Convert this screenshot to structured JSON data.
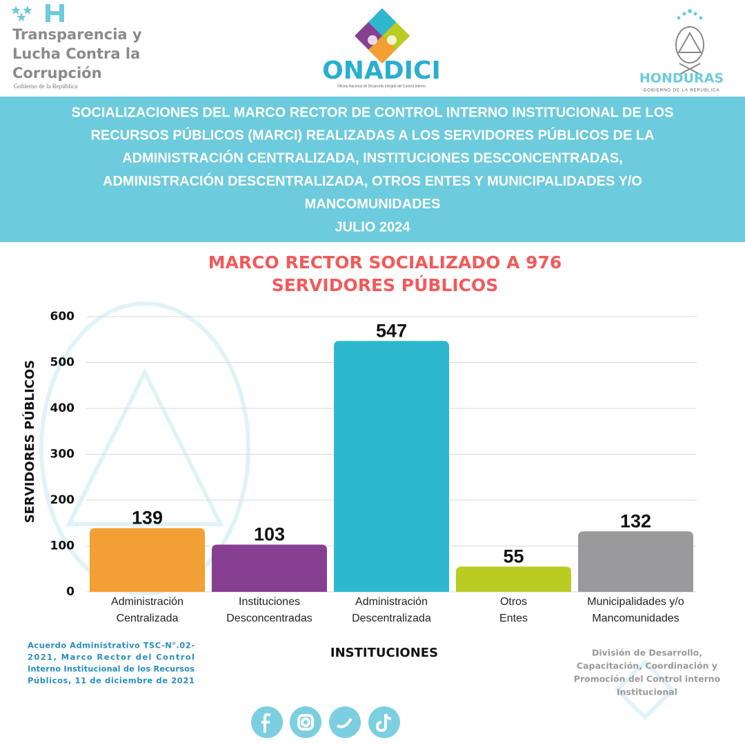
{
  "header": {
    "left_logo": [
      "Transparencia y",
      "Lucha Contra la",
      "Corrupción"
    ],
    "left_sub": "Gobierno de la República",
    "center_logo": "ONADICI",
    "center_sub": "Oficina Nacional de Desarrollo Integral del Control Interno",
    "right_logo": "HONDURAS",
    "right_sub": "GOBIERNO DE LA REPÚBLICA"
  },
  "banner": {
    "lines": [
      "SOCIALIZACIONES DEL MARCO RECTOR DE CONTROL INTERNO INSTITUCIONAL DE LOS",
      "RECURSOS PÚBLICOS (MARCI) REALIZADAS A LOS SERVIDORES PÚBLICOS DE LA",
      "ADMINISTRACIÓN CENTRALIZADA,  INSTITUCIONES DESCONCENTRADAS,",
      "ADMINISTRACIÓN DESCENTRALIZADA, OTROS ENTES Y MUNICIPALIDADES Y/O",
      "MANCOMUNIDADES",
      "JULIO 2024"
    ]
  },
  "chart_data": {
    "type": "bar",
    "title": [
      "MARCO RECTOR SOCIALIZADO A 976",
      "SERVIDORES PÚBLICOS"
    ],
    "categories": [
      [
        "Administración",
        "Centralizada"
      ],
      [
        "Instituciones",
        "Desconcentradas"
      ],
      [
        "Administración",
        "Descentralizada"
      ],
      [
        "Otros",
        "Entes"
      ],
      [
        "Municipalidades y/o",
        "Mancomunidades"
      ]
    ],
    "values": [
      139,
      103,
      547,
      55,
      132
    ],
    "colors": [
      "#f2a033",
      "#873f91",
      "#2eb8d0",
      "#b8cc22",
      "#9a9a9c"
    ],
    "ylim": [
      0,
      600
    ],
    "yticks": [
      0,
      100,
      200,
      300,
      400,
      500,
      600
    ],
    "ylabel": "SERVIDORES PÚBLICOS",
    "xlabel": "INSTITUCIONES",
    "grid": true
  },
  "footer": {
    "left_note": [
      "Acuerdo Administrativo TSC-N°.02-",
      "2021, Marco Rector del Control",
      "Interno Institucional de los Recursos",
      "Públicos, 11 de diciembre de 2021"
    ],
    "right_note": [
      "División de Desarrollo,",
      "Capacitación, Coordinación y",
      "Promoción del Control interno",
      "Institucional"
    ]
  }
}
